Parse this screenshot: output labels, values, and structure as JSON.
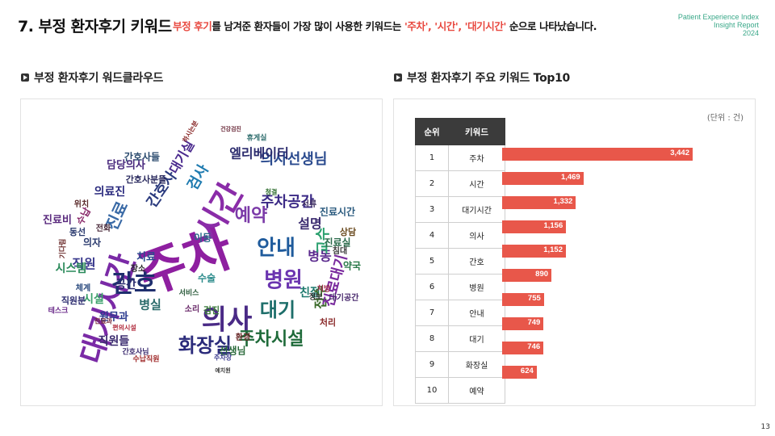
{
  "header": {
    "title": "7. 부정 환자후기 키워드",
    "subtitle_red": "부정 후기",
    "subtitle_rest_1": "를 남겨준 환자들이 가장 많이 사용한 키워드는 ",
    "subtitle_highlight": "'주차', '시간', '대기시간'",
    "subtitle_rest_2": " 순으로 나타났습니다.",
    "brand_line1": "Patient Experience Index",
    "brand_line2": "Insight Report",
    "brand_line3": "2024"
  },
  "left_section": {
    "heading": "부정 환자후기 워드클라우드",
    "words": [
      {
        "text": "주차",
        "color": "#8e1fa0"
      },
      {
        "text": "대기시간",
        "color": "#7a2aa6"
      },
      {
        "text": "시간",
        "color": "#8a2ca8"
      },
      {
        "text": "의사",
        "color": "#4a2a86"
      },
      {
        "text": "간호",
        "color": "#1f2f6e"
      },
      {
        "text": "병원",
        "color": "#6b35b0"
      },
      {
        "text": "안내",
        "color": "#1f5b9c"
      },
      {
        "text": "대기",
        "color": "#1d6e6a"
      },
      {
        "text": "화장실",
        "color": "#2a2a7a"
      },
      {
        "text": "예약",
        "color": "#7b3aa8"
      },
      {
        "text": "주차시설",
        "color": "#1f6b3a"
      },
      {
        "text": "주차공간",
        "color": "#3b2a86"
      },
      {
        "text": "의사선생님",
        "color": "#2a4a8e"
      },
      {
        "text": "검사",
        "color": "#1f7bb0"
      },
      {
        "text": "진료",
        "color": "#3a6aa6"
      },
      {
        "text": "엘리베이터",
        "color": "#2b2b6e"
      },
      {
        "text": "설명",
        "color": "#3a2a6e"
      },
      {
        "text": "병동",
        "color": "#5b2a8e"
      },
      {
        "text": "교수",
        "color": "#2aa06e"
      },
      {
        "text": "친절",
        "color": "#1f7a6e"
      },
      {
        "text": "접수",
        "color": "#3a6a2a"
      },
      {
        "text": "진료대기",
        "color": "#7a2a9e"
      },
      {
        "text": "간호사",
        "color": "#2a3a7e"
      },
      {
        "text": "직원",
        "color": "#3b3b8e"
      },
      {
        "text": "공간",
        "color": "#2a2a6e"
      },
      {
        "text": "병실",
        "color": "#2b6b6b"
      },
      {
        "text": "의료진",
        "color": "#2a2a7e"
      },
      {
        "text": "대기실",
        "color": "#4a2a8e"
      },
      {
        "text": "시스템",
        "color": "#2a8a5a"
      },
      {
        "text": "원무과",
        "color": "#2a3a8e"
      },
      {
        "text": "간호사들",
        "color": "#2a4a6e"
      },
      {
        "text": "직원들",
        "color": "#3a2a6e"
      },
      {
        "text": "선생님",
        "color": "#2a6a3a"
      },
      {
        "text": "시설",
        "color": "#3aa06a"
      },
      {
        "text": "치료",
        "color": "#2a4a8e"
      },
      {
        "text": "담당의사",
        "color": "#4a2a7e"
      },
      {
        "text": "간호사분들",
        "color": "#2a2a5e"
      },
      {
        "text": "진료실",
        "color": "#2a6a4a"
      },
      {
        "text": "진료시간",
        "color": "#2a5a7e"
      },
      {
        "text": "약국",
        "color": "#2a7a4a"
      },
      {
        "text": "수술",
        "color": "#2a8a8a"
      },
      {
        "text": "수납",
        "color": "#8a2a6a"
      },
      {
        "text": "진료비",
        "color": "#5a2a7e"
      },
      {
        "text": "의자",
        "color": "#2a3a6e"
      },
      {
        "text": "상담",
        "color": "#6a4a1e"
      },
      {
        "text": "침대",
        "color": "#3a3a3a"
      },
      {
        "text": "이동",
        "color": "#2a6a8a"
      },
      {
        "text": "위치",
        "color": "#5a2a2a"
      },
      {
        "text": "동선",
        "color": "#2a3a6e"
      },
      {
        "text": "대기공간",
        "color": "#4a2a6e"
      },
      {
        "text": "환경",
        "color": "#6a2a2a"
      },
      {
        "text": "처리",
        "color": "#8a2a2a"
      },
      {
        "text": "서류",
        "color": "#3a2a5e"
      },
      {
        "text": "직원분",
        "color": "#2a2a6e"
      },
      {
        "text": "검진",
        "color": "#3a7a3a"
      },
      {
        "text": "체계",
        "color": "#2a4a7e"
      },
      {
        "text": "휴게실",
        "color": "#2a6a6a"
      },
      {
        "text": "장소",
        "color": "#2a2a2a"
      },
      {
        "text": "처방",
        "color": "#a02a4a"
      },
      {
        "text": "소리",
        "color": "#6a2a6a"
      },
      {
        "text": "정보",
        "color": "#2a2a2a"
      },
      {
        "text": "테스크",
        "color": "#6a2a8a"
      },
      {
        "text": "편의시설",
        "color": "#b0283a"
      },
      {
        "text": "주차장",
        "color": "#3a3a8e"
      },
      {
        "text": "진료과",
        "color": "#7a2a3a"
      },
      {
        "text": "서비스",
        "color": "#2a5a3a"
      },
      {
        "text": "수납직원",
        "color": "#a02a2a"
      },
      {
        "text": "간호사님",
        "color": "#3a2a6e"
      },
      {
        "text": "청결",
        "color": "#2a6a2a"
      },
      {
        "text": "건강검진",
        "color": "#6a2a3a"
      },
      {
        "text": "하시는분",
        "color": "#8a2a2a"
      },
      {
        "text": "전화",
        "color": "#4a2a3a"
      },
      {
        "text": "기다림",
        "color": "#6a2a2a"
      },
      {
        "text": "예치원",
        "color": "#3a3a3a"
      }
    ]
  },
  "right_section": {
    "heading": "부정 환자후기 주요 키워드 Top10",
    "unit": "(단위 : 건)",
    "col_rank": "순위",
    "col_word": "키워드"
  },
  "chart_data": {
    "type": "bar",
    "title": "부정 환자후기 주요 키워드 Top10",
    "categories": [
      "주차",
      "시간",
      "대기시간",
      "의사",
      "간호",
      "병원",
      "안내",
      "대기",
      "화장실",
      "예약"
    ],
    "ranks": [
      "1",
      "2",
      "3",
      "4",
      "5",
      "6",
      "7",
      "8",
      "9",
      "10"
    ],
    "values": [
      3442,
      1469,
      1332,
      1156,
      1152,
      890,
      755,
      749,
      746,
      624
    ],
    "labels": [
      "3,442",
      "1,469",
      "1,332",
      "1,156",
      "1,152",
      "890",
      "755",
      "749",
      "746",
      "624"
    ],
    "orientation": "horizontal",
    "bar_color": "#e8574a",
    "grid": false
  },
  "footer": {
    "page_number": "13"
  }
}
